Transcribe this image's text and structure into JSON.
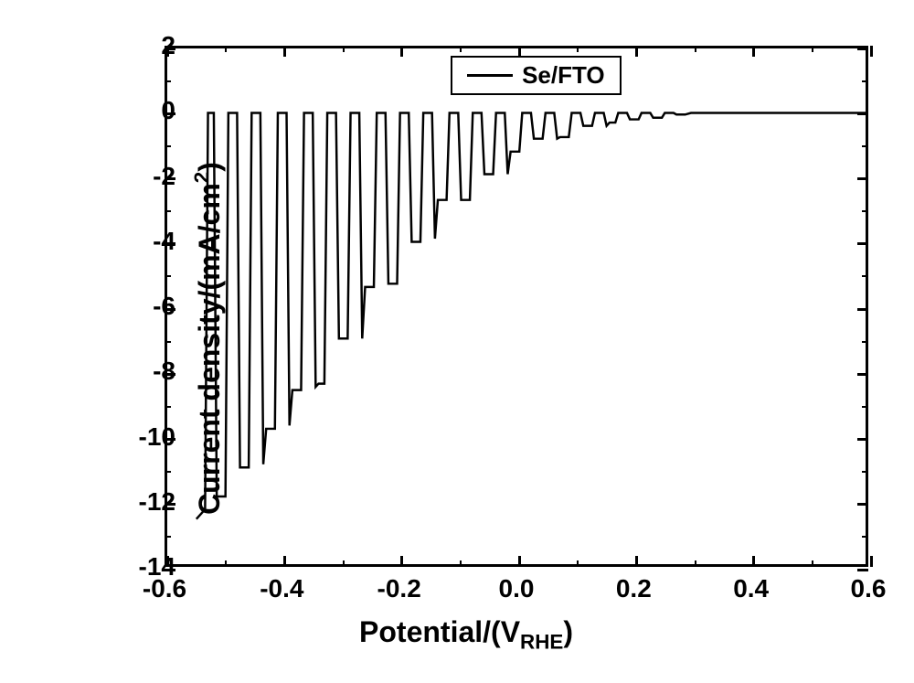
{
  "chart": {
    "type": "line",
    "background_color": "#ffffff",
    "border_color": "#000000",
    "border_width": 3,
    "line_color": "#000000",
    "line_width": 2.5,
    "legend": {
      "label": "Se/FTO",
      "position": "top-center-right"
    },
    "xlabel_pre": "Potential/(V",
    "xlabel_sub": "RHE",
    "xlabel_post": ")",
    "ylabel_pre": "Current density/(mA/cm",
    "ylabel_sup": "2",
    "ylabel_post": ")",
    "xlim": [
      -0.6,
      0.6
    ],
    "ylim": [
      -14,
      2
    ],
    "xtick_step": 0.2,
    "ytick_step": 2,
    "xtick_labels": [
      "-0.6",
      "-0.4",
      "-0.2",
      "0.0",
      "0.2",
      "0.4",
      "0.6"
    ],
    "ytick_labels": [
      "-14",
      "-12",
      "-10",
      "-8",
      "-6",
      "-4",
      "-2",
      "0",
      "2"
    ],
    "label_fontsize": 32,
    "tick_fontsize": 28,
    "legend_fontsize": 26,
    "data_points": [
      [
        -0.55,
        -12.6
      ],
      [
        -0.535,
        -12.3
      ],
      [
        -0.53,
        0.0
      ],
      [
        -0.52,
        0.0
      ],
      [
        -0.515,
        -11.9
      ],
      [
        -0.5,
        -11.9
      ],
      [
        -0.495,
        0.0
      ],
      [
        -0.48,
        0.0
      ],
      [
        -0.475,
        -11.0
      ],
      [
        -0.46,
        -11.0
      ],
      [
        -0.455,
        0.0
      ],
      [
        -0.44,
        0.0
      ],
      [
        -0.435,
        -10.9
      ],
      [
        -0.43,
        -9.8
      ],
      [
        -0.415,
        -9.8
      ],
      [
        -0.41,
        0.0
      ],
      [
        -0.395,
        0.0
      ],
      [
        -0.39,
        -9.7
      ],
      [
        -0.385,
        -8.6
      ],
      [
        -0.37,
        -8.6
      ],
      [
        -0.365,
        0.0
      ],
      [
        -0.35,
        0.0
      ],
      [
        -0.345,
        -8.5
      ],
      [
        -0.34,
        -8.4
      ],
      [
        -0.33,
        -8.4
      ],
      [
        -0.325,
        0.0
      ],
      [
        -0.31,
        0.0
      ],
      [
        -0.305,
        -7.0
      ],
      [
        -0.29,
        -7.0
      ],
      [
        -0.285,
        0.0
      ],
      [
        -0.27,
        0.0
      ],
      [
        -0.265,
        -7.0
      ],
      [
        -0.26,
        -5.4
      ],
      [
        -0.245,
        -5.4
      ],
      [
        -0.24,
        0.0
      ],
      [
        -0.225,
        0.0
      ],
      [
        -0.22,
        -5.3
      ],
      [
        -0.215,
        -5.3
      ],
      [
        -0.205,
        -5.3
      ],
      [
        -0.2,
        0.0
      ],
      [
        -0.185,
        0.0
      ],
      [
        -0.18,
        -4.0
      ],
      [
        -0.165,
        -4.0
      ],
      [
        -0.16,
        0.0
      ],
      [
        -0.145,
        0.0
      ],
      [
        -0.14,
        -3.9
      ],
      [
        -0.135,
        -2.7
      ],
      [
        -0.12,
        -2.7
      ],
      [
        -0.115,
        0.0
      ],
      [
        -0.1,
        0.0
      ],
      [
        -0.095,
        -2.7
      ],
      [
        -0.09,
        -2.7
      ],
      [
        -0.08,
        -2.7
      ],
      [
        -0.075,
        0.0
      ],
      [
        -0.06,
        0.0
      ],
      [
        -0.055,
        -1.9
      ],
      [
        -0.04,
        -1.9
      ],
      [
        -0.035,
        0.0
      ],
      [
        -0.02,
        0.0
      ],
      [
        -0.015,
        -1.9
      ],
      [
        -0.01,
        -1.2
      ],
      [
        0.005,
        -1.2
      ],
      [
        0.01,
        0.0
      ],
      [
        0.025,
        0.0
      ],
      [
        0.03,
        -0.8
      ],
      [
        0.045,
        -0.8
      ],
      [
        0.05,
        0.0
      ],
      [
        0.065,
        0.0
      ],
      [
        0.07,
        -0.8
      ],
      [
        0.075,
        -0.75
      ],
      [
        0.09,
        -0.75
      ],
      [
        0.095,
        0.0
      ],
      [
        0.11,
        0.0
      ],
      [
        0.115,
        -0.4
      ],
      [
        0.13,
        -0.4
      ],
      [
        0.135,
        0.0
      ],
      [
        0.15,
        0.0
      ],
      [
        0.155,
        -0.4
      ],
      [
        0.16,
        -0.3
      ],
      [
        0.17,
        -0.3
      ],
      [
        0.175,
        0.0
      ],
      [
        0.19,
        0.0
      ],
      [
        0.195,
        -0.2
      ],
      [
        0.21,
        -0.2
      ],
      [
        0.215,
        0.0
      ],
      [
        0.23,
        0.0
      ],
      [
        0.235,
        -0.15
      ],
      [
        0.25,
        -0.15
      ],
      [
        0.255,
        0.0
      ],
      [
        0.27,
        0.0
      ],
      [
        0.275,
        -0.05
      ],
      [
        0.29,
        -0.05
      ],
      [
        0.3,
        0.0
      ],
      [
        0.6,
        0.0
      ]
    ]
  }
}
